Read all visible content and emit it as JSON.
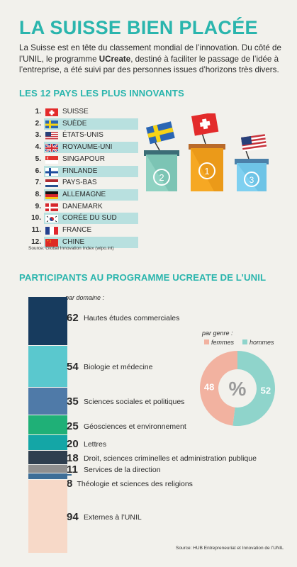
{
  "title": "LA SUISSE BIEN PLACÉE",
  "intro": {
    "before": "La Suisse est en tête du classement mondial de l’innovation. Du côté de l’UNIL, le programme ",
    "bold": "UCreate",
    "after": ", destiné à faciliter le passage de l’idée à l’entreprise, a été suivi par des personnes issues d’horizons très divers."
  },
  "ranking": {
    "heading": "LES 12 PAYS LES PLUS INNOVANTS",
    "items": [
      {
        "rank": "1.",
        "name": "SUISSE",
        "flag": "ch-flag-icon"
      },
      {
        "rank": "2.",
        "name": "SUÈDE",
        "flag": "se-flag-icon"
      },
      {
        "rank": "3.",
        "name": "ÉTATS-UNIS",
        "flag": "us-flag-icon"
      },
      {
        "rank": "4.",
        "name": "ROYAUME-UNI",
        "flag": "gb-flag-icon"
      },
      {
        "rank": "5.",
        "name": "SINGAPOUR",
        "flag": "sg-flag-icon"
      },
      {
        "rank": "6.",
        "name": "FINLANDE",
        "flag": "fi-flag-icon"
      },
      {
        "rank": "7.",
        "name": "PAYS-BAS",
        "flag": "nl-flag-icon"
      },
      {
        "rank": "8.",
        "name": "ALLEMAGNE",
        "flag": "de-flag-icon"
      },
      {
        "rank": "9.",
        "name": "DANEMARK",
        "flag": "dk-flag-icon"
      },
      {
        "rank": "10.",
        "name": "CORÉE DU SUD",
        "flag": "kr-flag-icon"
      },
      {
        "rank": "11.",
        "name": "FRANCE",
        "flag": "fr-flag-icon"
      },
      {
        "rank": "12.",
        "name": "CHINE",
        "flag": "cn-flag-icon"
      }
    ],
    "source": "Source: Global Innovation Index (wipo.int)",
    "podium": [
      "2",
      "1",
      "3"
    ]
  },
  "participants": {
    "heading": "PARTICIPANTS AU PROGRAMME UCREATE DE L’UNIL",
    "domain_label": "par domaine :",
    "gender_label": "par genre :",
    "source": "Source: HUB Entrepreneuriat et Innovation de l’UNIL"
  },
  "chart_data": [
    {
      "type": "bar",
      "title": "par domaine :",
      "categories": [
        "Hautes études commerciales",
        "Biologie et médecine",
        "Sciences sociales et politiques",
        "Géosciences et environnement",
        "Lettres",
        "Droit, sciences criminelles et administration publique",
        "Services de la direction",
        "Théologie et sciences des religions",
        "Externes à l’UNIL"
      ],
      "values": [
        62,
        54,
        35,
        25,
        20,
        18,
        11,
        8,
        94
      ],
      "colors": [
        "#173b5e",
        "#5ac8ce",
        "#4f7aa8",
        "#1fb077",
        "#14a6a6",
        "#2f3f4f",
        "#8f8f8f",
        "#3d6e97",
        "#f7d9c8"
      ]
    },
    {
      "type": "pie",
      "title": "par genre :",
      "categories": [
        "femmes",
        "hommes"
      ],
      "values": [
        48,
        52
      ],
      "center_label": "%",
      "colors": [
        "#f2b2a0",
        "#8fd4cb"
      ]
    }
  ]
}
